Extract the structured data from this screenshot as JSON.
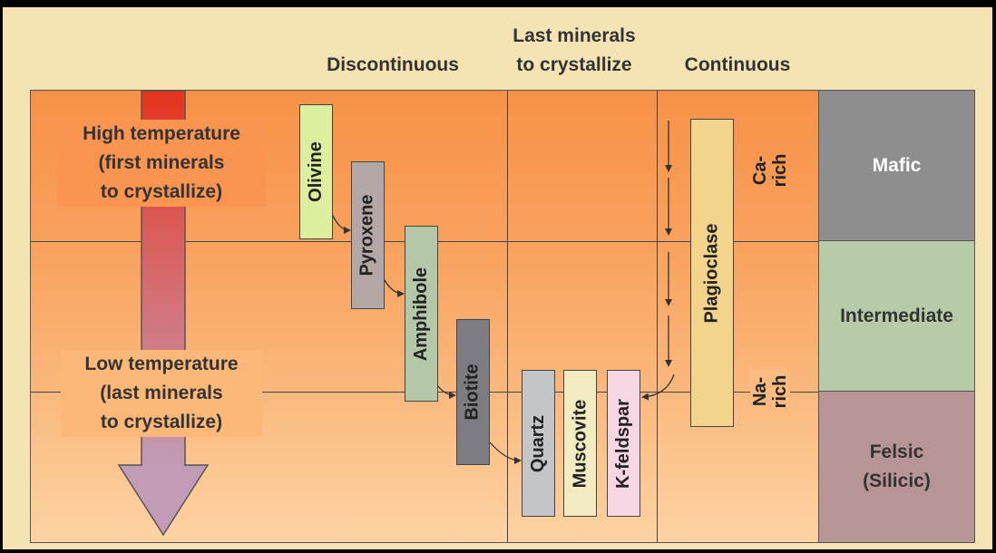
{
  "headers": {
    "discontinuous": "Discontinuous",
    "last_minerals_line1": "Last minerals",
    "last_minerals_line2": "to crystallize",
    "continuous": "Continuous"
  },
  "temperature": {
    "high_line1": "High temperature",
    "high_line2": "(first minerals",
    "high_line3": "to crystallize)",
    "low_line1": "Low temperature",
    "low_line2": "(last minerals",
    "low_line3": "to crystallize)"
  },
  "minerals": {
    "olivine": "Olivine",
    "pyroxene": "Pyroxene",
    "amphibole": "Amphibole",
    "biotite": "Biotite",
    "quartz": "Quartz",
    "muscovite": "Muscovite",
    "kfeldspar": "K-feldspar",
    "plagioclase": "Plagioclase"
  },
  "plagioclase_ends": {
    "top_line1": "Ca-",
    "top_line2": "rich",
    "bottom_line1": "Na-",
    "bottom_line2": "rich"
  },
  "compositions": {
    "mafic": "Mafic",
    "intermediate": "Intermediate",
    "felsic_line1": "Felsic",
    "felsic_line2": "(Silicic)"
  },
  "colors": {
    "olivine": "#dcef9e",
    "pyroxene": "#b4a8a6",
    "amphibole": "#b4c8a8",
    "biotite": "#7c7c82",
    "quartz": "#c3c5c8",
    "muscovite": "#f2ebc2",
    "kfeldspar": "#f7d7e3",
    "plagioclase": "#f2d48c",
    "mafic": "#8e8e8e",
    "intermediate": "#b7cba8",
    "felsic": "#b89595"
  }
}
